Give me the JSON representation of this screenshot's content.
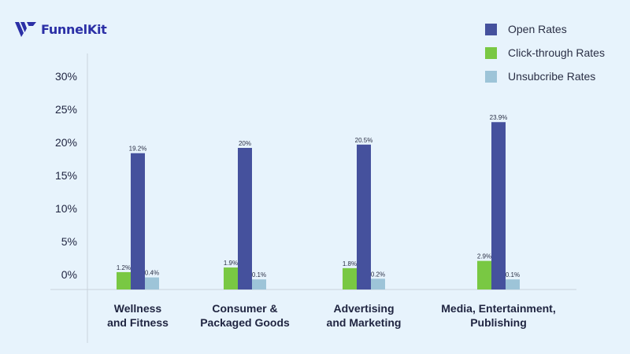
{
  "brand": {
    "name_main": "Funnel",
    "name_accent": "Kit"
  },
  "colors": {
    "open": "#45519d",
    "click": "#79c843",
    "unsub": "#9dc4d8",
    "axis": "#c9d3dc",
    "background": "#e7f3fc"
  },
  "chart_data": {
    "type": "bar",
    "title": "",
    "xlabel": "",
    "ylabel": "",
    "ylim": [
      0,
      30
    ],
    "yticks": [
      "0%",
      "5%",
      "10%",
      "15%",
      "20%",
      "25%",
      "30%"
    ],
    "categories": [
      [
        "Wellness",
        "and Fitness"
      ],
      [
        "Consumer &",
        "Packaged Goods"
      ],
      [
        "Advertising",
        "and Marketing"
      ],
      [
        "Media, Entertainment,",
        "Publishing"
      ]
    ],
    "series": [
      {
        "name": "Click-through Rates",
        "color_key": "click",
        "values": [
          1.2,
          1.9,
          1.8,
          2.9
        ],
        "labels": [
          "1.2%",
          "1.9%",
          "1.8%",
          "2.9%"
        ]
      },
      {
        "name": "Open Rates",
        "color_key": "open",
        "values": [
          19.2,
          20,
          20.5,
          23.9
        ],
        "labels": [
          "19.2%",
          "20%",
          "20.5%",
          "23.9%"
        ]
      },
      {
        "name": "Unsubcribe Rates",
        "color_key": "unsub",
        "values": [
          0.4,
          0.1,
          0.2,
          0.1
        ],
        "labels": [
          "0.4%",
          "0.1%",
          "0.2%",
          "0.1%"
        ]
      }
    ],
    "legend": [
      "Open Rates",
      "Click-through Rates",
      "Unsubcribe Rates"
    ],
    "legend_position": "top-right",
    "grid": false
  }
}
